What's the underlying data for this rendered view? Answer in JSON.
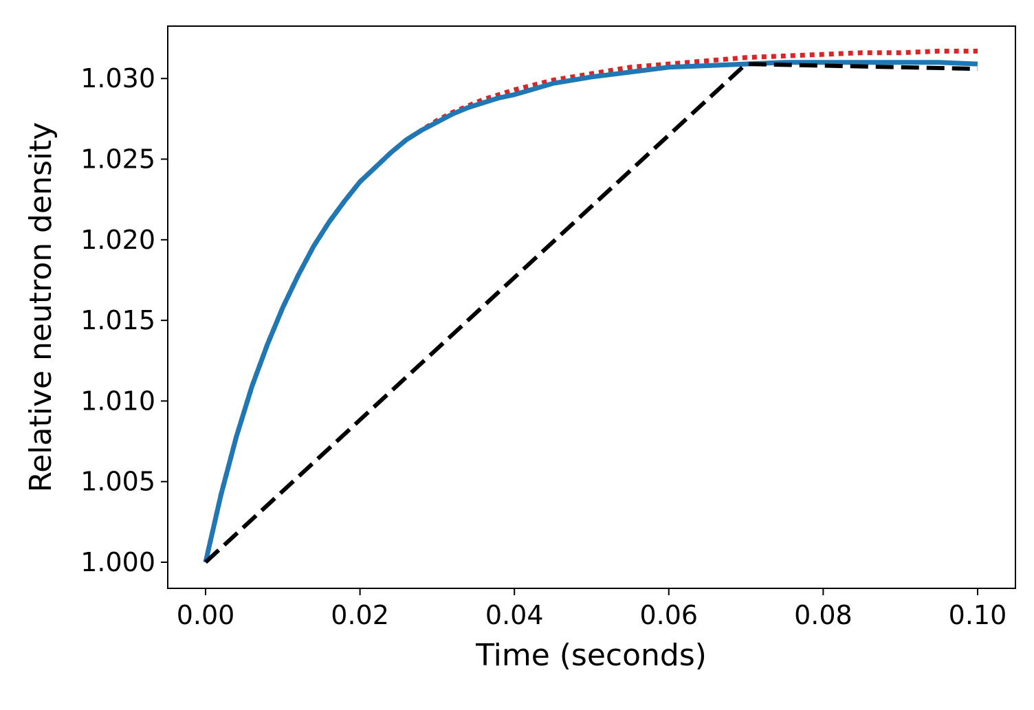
{
  "chart_data": {
    "type": "line",
    "title": "",
    "xlabel": "Time (seconds)",
    "ylabel": "Relative neutron density",
    "xlim": [
      -0.0049,
      0.1049
    ],
    "ylim": [
      0.99838,
      1.03325
    ],
    "grid": false,
    "x_ticks": [
      0.0,
      0.02,
      0.04,
      0.06,
      0.08,
      0.1
    ],
    "x_tick_labels": [
      "0.00",
      "0.02",
      "0.04",
      "0.06",
      "0.08",
      "0.10"
    ],
    "y_ticks": [
      1.0,
      1.005,
      1.01,
      1.015,
      1.02,
      1.025,
      1.03
    ],
    "y_tick_labels": [
      "1.000",
      "1.005",
      "1.010",
      "1.015",
      "1.020",
      "1.025",
      "1.030"
    ],
    "series": [
      {
        "color": "#d62728",
        "style": "dotted",
        "x": [
          0.0,
          0.002,
          0.004,
          0.006,
          0.008,
          0.01,
          0.012,
          0.014,
          0.016,
          0.018,
          0.02,
          0.022,
          0.024,
          0.026,
          0.028,
          0.03,
          0.032,
          0.034,
          0.036,
          0.038,
          0.04,
          0.045,
          0.05,
          0.055,
          0.06,
          0.065,
          0.07,
          0.075,
          0.08,
          0.085,
          0.09,
          0.095,
          0.1
        ],
        "y": [
          1.0,
          1.0042,
          1.0078,
          1.0109,
          1.0135,
          1.0158,
          1.0178,
          1.0196,
          1.0211,
          1.0224,
          1.0236,
          1.0245,
          1.0254,
          1.0262,
          1.0268,
          1.0274,
          1.0279,
          1.0283,
          1.0287,
          1.029,
          1.0293,
          1.0299,
          1.0303,
          1.0307,
          1.0309,
          1.0311,
          1.0313,
          1.0314,
          1.0315,
          1.0316,
          1.0316,
          1.0317,
          1.0317
        ]
      },
      {
        "color": "#1f77b4",
        "style": "solid",
        "x": [
          0.0,
          0.002,
          0.004,
          0.006,
          0.008,
          0.01,
          0.012,
          0.014,
          0.016,
          0.018,
          0.02,
          0.022,
          0.024,
          0.026,
          0.028,
          0.03,
          0.032,
          0.034,
          0.036,
          0.038,
          0.04,
          0.045,
          0.05,
          0.055,
          0.06,
          0.065,
          0.07,
          0.075,
          0.08,
          0.085,
          0.09,
          0.095,
          0.1
        ],
        "y": [
          1.0,
          1.0042,
          1.0078,
          1.0109,
          1.0135,
          1.0158,
          1.0178,
          1.0196,
          1.0211,
          1.0224,
          1.0236,
          1.0245,
          1.0254,
          1.0262,
          1.0268,
          1.0273,
          1.0278,
          1.0282,
          1.0285,
          1.0288,
          1.029,
          1.0297,
          1.0301,
          1.0304,
          1.0307,
          1.0308,
          1.0309,
          1.031,
          1.031,
          1.031,
          1.031,
          1.031,
          1.0309
        ]
      },
      {
        "color": "#000000",
        "style": "dashed",
        "x": [
          0.0,
          0.07,
          0.08,
          0.09,
          0.1
        ],
        "y": [
          1.0,
          1.0309,
          1.0308,
          1.0307,
          1.0306
        ]
      }
    ]
  }
}
